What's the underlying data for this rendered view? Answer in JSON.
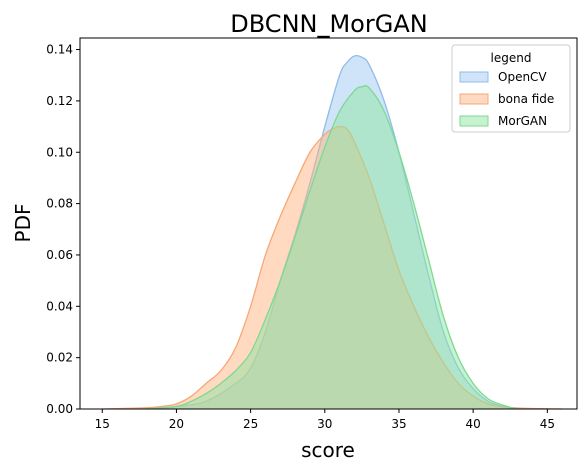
{
  "chart_data": {
    "type": "area",
    "title": "DBCNN_MorGAN",
    "xlabel": "score",
    "ylabel": "PDF",
    "xlim": [
      13.5,
      47.0
    ],
    "ylim": [
      0.0,
      0.1445
    ],
    "xticks": [
      15,
      20,
      25,
      30,
      35,
      40,
      45
    ],
    "yticks": [
      0.0,
      0.02,
      0.04,
      0.06,
      0.08,
      0.1,
      0.12,
      0.14
    ],
    "ytick_labels": [
      "0.00",
      "0.02",
      "0.04",
      "0.06",
      "0.08",
      "0.10",
      "0.12",
      "0.14"
    ],
    "grid": false,
    "legend": {
      "title": "legend",
      "position": "top-right"
    },
    "series": [
      {
        "name": "OpenCV",
        "fill": "#a1c9f4",
        "edge": "#8fbde8",
        "x": [
          18,
          20,
          22,
          24,
          25,
          26,
          27,
          28,
          29,
          30,
          31,
          31.5,
          32,
          32.5,
          33,
          34,
          35,
          36,
          37,
          38,
          39,
          40,
          41,
          42,
          43
        ],
        "y": [
          0.0,
          0.001,
          0.003,
          0.01,
          0.016,
          0.03,
          0.05,
          0.068,
          0.088,
          0.11,
          0.13,
          0.135,
          0.1375,
          0.137,
          0.134,
          0.12,
          0.1,
          0.076,
          0.052,
          0.03,
          0.016,
          0.008,
          0.003,
          0.001,
          0.0
        ]
      },
      {
        "name": "bona fide",
        "fill": "#ffb482",
        "edge": "#f5a877",
        "x": [
          15,
          18,
          19,
          20,
          21,
          22,
          23,
          24,
          25,
          26,
          27,
          28,
          29,
          30,
          30.5,
          31,
          31.5,
          32,
          33,
          34,
          35,
          36,
          37,
          38,
          39,
          40,
          41,
          42,
          43,
          44,
          45,
          46
        ],
        "y": [
          0.0,
          0.0005,
          0.001,
          0.002,
          0.005,
          0.01,
          0.015,
          0.024,
          0.04,
          0.06,
          0.075,
          0.088,
          0.1,
          0.107,
          0.109,
          0.11,
          0.109,
          0.104,
          0.09,
          0.072,
          0.054,
          0.04,
          0.028,
          0.018,
          0.01,
          0.005,
          0.002,
          0.0008,
          0.0004,
          0.0002,
          0.0001,
          0.0
        ]
      },
      {
        "name": "MorGAN",
        "fill": "#8de5a1",
        "edge": "#7dd993",
        "x": [
          18,
          20,
          21,
          22,
          23,
          24,
          25,
          26,
          27,
          28,
          29,
          30,
          31,
          32,
          32.5,
          33,
          34,
          35,
          36,
          37,
          38,
          39,
          40,
          41,
          42,
          43
        ],
        "y": [
          0.0,
          0.001,
          0.003,
          0.006,
          0.01,
          0.015,
          0.022,
          0.035,
          0.05,
          0.067,
          0.085,
          0.102,
          0.116,
          0.124,
          0.1255,
          0.125,
          0.116,
          0.1,
          0.08,
          0.058,
          0.036,
          0.02,
          0.01,
          0.004,
          0.0015,
          0.0
        ]
      }
    ]
  }
}
